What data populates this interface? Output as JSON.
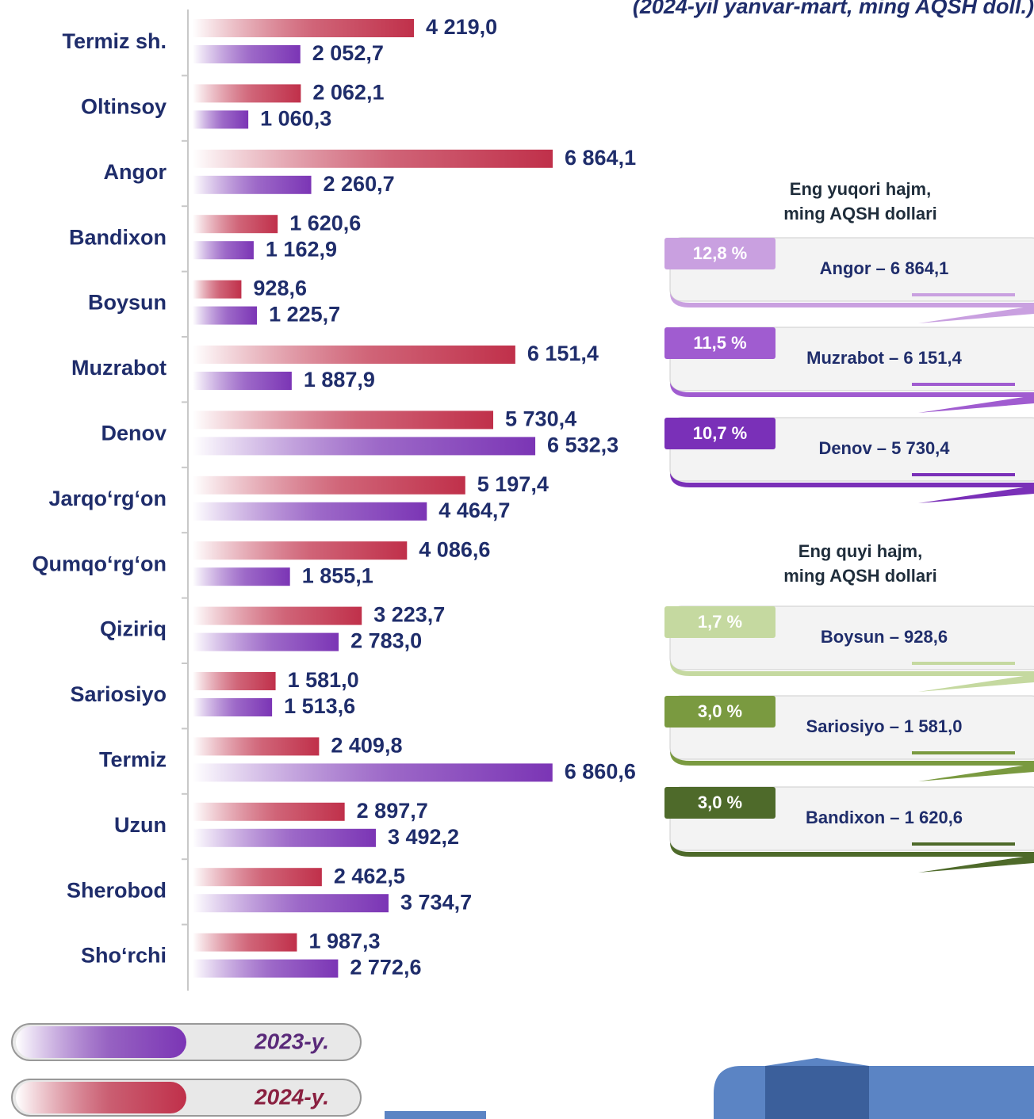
{
  "chart_data": {
    "type": "bar",
    "orientation": "horizontal",
    "subtitle": "(2024-yil yanvar-mart, ming AQSH doll.)",
    "categories": [
      "Termiz sh.",
      "Oltinsoy",
      "Angor",
      "Bandixon",
      "Boysun",
      "Muzrabot",
      "Denov",
      "Jarqo‘rg‘on",
      "Qumqo‘rg‘on",
      "Qiziriq",
      "Sariosiyo",
      "Termiz",
      "Uzun",
      "Sherobod",
      "Sho‘rchi"
    ],
    "series": [
      {
        "name": "2024-y.",
        "color": "#c0304a",
        "values": [
          4219.0,
          2062.1,
          6864.1,
          1620.6,
          928.6,
          6151.4,
          5730.4,
          5197.4,
          4086.6,
          3223.7,
          1581.0,
          2409.8,
          2897.7,
          2462.5,
          1987.3
        ],
        "value_labels": [
          "4 219,0",
          "2 062,1",
          "6 864,1",
          "1 620,6",
          "928,6",
          "6 151,4",
          "5 730,4",
          "5 197,4",
          "4 086,6",
          "3 223,7",
          "1 581,0",
          "2 409,8",
          "2 897,7",
          "2 462,5",
          "1 987,3"
        ]
      },
      {
        "name": "2023-y.",
        "color": "#7b35b5",
        "values": [
          2052.7,
          1060.3,
          2260.7,
          1162.9,
          1225.7,
          1887.9,
          6532.3,
          4464.7,
          1855.1,
          2783.0,
          1513.6,
          6860.6,
          3492.2,
          3734.7,
          2772.6
        ],
        "value_labels": [
          "2 052,7",
          "1 060,3",
          "2 260,7",
          "1 162,9",
          "1 225,7",
          "1 887,9",
          "6 532,3",
          "4 464,7",
          "1 855,1",
          "2 783,0",
          "1 513,6",
          "6 860,6",
          "3 492,2",
          "3 734,7",
          "2 772,6"
        ]
      }
    ]
  },
  "panels": [
    {
      "title": "Eng yuqori hajm,",
      "unit": "ming AQSH dollari",
      "colors": [
        "#c9a0e0",
        "#a05cd0",
        "#7a30b8"
      ],
      "items": [
        {
          "percent": "12,8 %",
          "label": "Angor – 6 864,1"
        },
        {
          "percent": "11,5 %",
          "label": "Muzrabot – 6 151,4"
        },
        {
          "percent": "10,7 %",
          "label": "Denov – 5 730,4"
        }
      ]
    },
    {
      "title": "Eng quyi hajm,",
      "unit": "ming AQSH dollari",
      "colors": [
        "#c5d9a0",
        "#7a9a40",
        "#4e6a2a"
      ],
      "items": [
        {
          "percent": "1,7 %",
          "label": "Boysun – 928,6"
        },
        {
          "percent": "3,0 %",
          "label": "Sariosiyo – 1 581,0"
        },
        {
          "percent": "3,0 %",
          "label": "Bandixon – 1 620,6"
        }
      ]
    }
  ]
}
